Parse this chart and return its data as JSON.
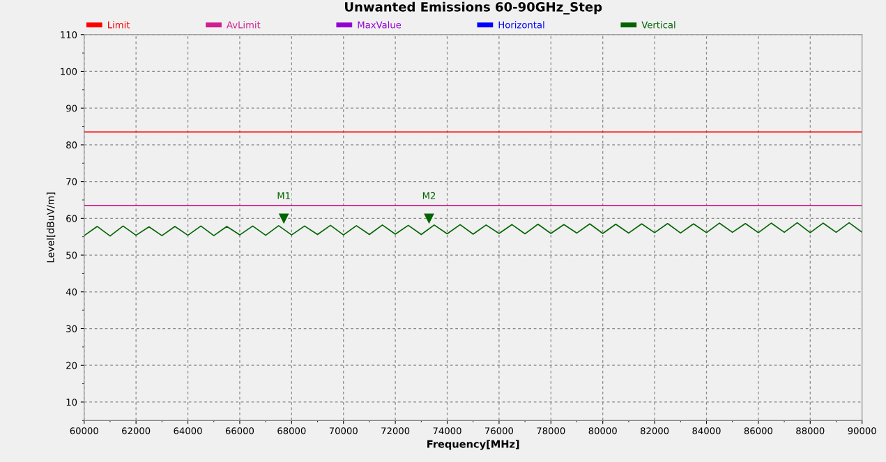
{
  "chart_data": {
    "type": "line",
    "title": "Unwanted Emissions 60-90GHz_Step",
    "xlabel": "Frequency[MHz]",
    "ylabel": "Level[dBuV/m]",
    "xlim": [
      60000,
      90000
    ],
    "xticks": [
      60000,
      62000,
      64000,
      66000,
      68000,
      70000,
      72000,
      74000,
      76000,
      78000,
      80000,
      82000,
      84000,
      86000,
      88000,
      90000
    ],
    "ylim": [
      5,
      110
    ],
    "yticks": [
      10,
      20,
      30,
      40,
      50,
      60,
      70,
      80,
      90,
      100,
      110
    ],
    "grid": true,
    "legend": "top",
    "marker": "none",
    "line_style": "solid",
    "series": [
      {
        "name": "Limit",
        "color": "#ff0000",
        "x": [
          60000,
          90000
        ],
        "values": [
          83.5,
          83.5
        ]
      },
      {
        "name": "AvLimit",
        "color": "#d02090",
        "x": [
          60000,
          90000
        ],
        "values": [
          63.5,
          63.5
        ]
      },
      {
        "name": "MaxValue",
        "color": "#9400d3"
      },
      {
        "name": "Horizontal",
        "color": "#0000ff"
      },
      {
        "name": "Vertical",
        "color": "#006400",
        "x": [
          60000,
          60500,
          61000,
          61500,
          62000,
          62500,
          63000,
          63500,
          64000,
          64500,
          65000,
          65500,
          66000,
          66500,
          67000,
          67500,
          68000,
          68500,
          69000,
          69500,
          70000,
          70500,
          71000,
          71500,
          72000,
          72500,
          73000,
          73500,
          74000,
          74500,
          75000,
          75500,
          76000,
          76500,
          77000,
          77500,
          78000,
          78500,
          79000,
          79500,
          80000,
          80500,
          81000,
          81500,
          82000,
          82500,
          83000,
          83500,
          84000,
          84500,
          85000,
          85500,
          86000,
          86500,
          87000,
          87500,
          88000,
          88500,
          89000,
          89500,
          90000
        ],
        "values": [
          55.3,
          57.8,
          55.2,
          57.9,
          55.4,
          57.7,
          55.3,
          57.8,
          55.4,
          57.9,
          55.3,
          57.8,
          55.5,
          57.9,
          55.4,
          58.0,
          55.5,
          57.9,
          55.6,
          58.1,
          55.5,
          58.0,
          55.6,
          58.2,
          55.7,
          58.1,
          55.6,
          58.2,
          55.8,
          58.3,
          55.7,
          58.2,
          55.9,
          58.3,
          55.8,
          58.4,
          55.9,
          58.3,
          56.0,
          58.5,
          55.9,
          58.4,
          56.0,
          58.5,
          56.1,
          58.6,
          56.0,
          58.5,
          56.1,
          58.7,
          56.2,
          58.6,
          56.1,
          58.7,
          56.2,
          58.8,
          56.1,
          58.7,
          56.2,
          58.8,
          56.2
        ]
      }
    ],
    "annotations": [
      {
        "text": "M1",
        "x": 67700,
        "y": 60
      },
      {
        "text": "M2",
        "x": 73300,
        "y": 60
      }
    ]
  }
}
